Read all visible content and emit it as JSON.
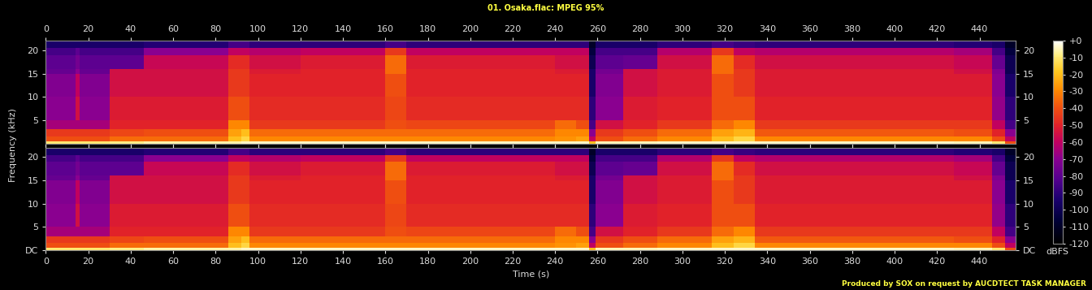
{
  "figure": {
    "title": "01. Osaka.flac: MPEG 95%",
    "x_label": "Time (s)",
    "y_label": "Frequency (kHz)",
    "footer": "Produced by SOX on request by AUCDTECT TASK MANAGER",
    "colorbar": {
      "label": "dBFS",
      "range": [
        -120,
        0
      ],
      "ticks": [
        {
          "value": 0,
          "label": "+0"
        },
        -10,
        -20,
        -30,
        -40,
        -50,
        -60,
        -70,
        -80,
        -90,
        -100,
        -110,
        -120
      ]
    }
  },
  "chart_data": [
    {
      "type": "heatmap",
      "x_edges": [
        0,
        14,
        16,
        30,
        46,
        86,
        92,
        96,
        120,
        160,
        170,
        240,
        250,
        256,
        259,
        272,
        288,
        314,
        324,
        334,
        428,
        446,
        452,
        457
      ],
      "y_edges": [
        0,
        0.4,
        1.5,
        3,
        5,
        10,
        15,
        16,
        19,
        20.5,
        22.05
      ],
      "cells": [
        [
          -10,
          -10,
          -10,
          -8,
          -6,
          -6,
          -4,
          -4,
          -4,
          -4,
          -4,
          -4,
          -4,
          -20,
          -5,
          -5,
          -4,
          -4,
          -4,
          -4,
          -5,
          -10,
          -40
        ],
        [
          -40,
          -40,
          -40,
          -35,
          -35,
          -20,
          -15,
          -30,
          -30,
          -30,
          -30,
          -28,
          -25,
          -60,
          -40,
          -35,
          -30,
          -20,
          -15,
          -30,
          -30,
          -40,
          -60
        ],
        [
          -45,
          -45,
          -45,
          -42,
          -40,
          -25,
          -20,
          -35,
          -35,
          -35,
          -35,
          -30,
          -30,
          -70,
          -45,
          -40,
          -35,
          -25,
          -22,
          -38,
          -40,
          -50,
          -70
        ],
        [
          -65,
          -65,
          -65,
          -50,
          -50,
          -30,
          -30,
          -45,
          -45,
          -40,
          -42,
          -35,
          -40,
          -85,
          -55,
          -50,
          -45,
          -35,
          -30,
          -45,
          -45,
          -60,
          -85
        ],
        [
          -70,
          -55,
          -70,
          -52,
          -52,
          -40,
          -40,
          -48,
          -48,
          -42,
          -48,
          -48,
          -48,
          -90,
          -70,
          -52,
          -50,
          -40,
          -40,
          -50,
          -50,
          -68,
          -90
        ],
        [
          -72,
          -60,
          -72,
          -55,
          -55,
          -45,
          -45,
          -50,
          -50,
          -40,
          -50,
          -50,
          -50,
          -95,
          -72,
          -55,
          -52,
          -40,
          -45,
          -52,
          -52,
          -70,
          -95
        ],
        [
          -78,
          -70,
          -78,
          -55,
          -55,
          -45,
          -45,
          -52,
          -50,
          -35,
          -50,
          -52,
          -52,
          -95,
          -75,
          -55,
          -52,
          -35,
          -45,
          -52,
          -55,
          -72,
          -100
        ],
        [
          -80,
          -75,
          -80,
          -80,
          -58,
          -48,
          -48,
          -55,
          -52,
          -35,
          -52,
          -55,
          -55,
          -100,
          -80,
          -78,
          -55,
          -35,
          -48,
          -55,
          -58,
          -78,
          -100
        ],
        [
          -85,
          -80,
          -85,
          -85,
          -70,
          -60,
          -60,
          -62,
          -60,
          -45,
          -60,
          -60,
          -60,
          -105,
          -85,
          -85,
          -62,
          -45,
          -60,
          -62,
          -65,
          -85,
          -105
        ],
        [
          -95,
          -95,
          -95,
          -95,
          -92,
          -85,
          -85,
          -90,
          -90,
          -85,
          -90,
          -90,
          -90,
          -110,
          -95,
          -95,
          -90,
          -85,
          -88,
          -90,
          -92,
          -95,
          -110
        ]
      ],
      "xlim": [
        0,
        457
      ],
      "xticks": [
        0,
        20,
        40,
        60,
        80,
        100,
        120,
        140,
        160,
        180,
        200,
        220,
        240,
        260,
        280,
        300,
        320,
        340,
        360,
        380,
        400,
        420,
        440
      ],
      "ylim": [
        0,
        22.05
      ],
      "yticks": [
        5,
        10,
        15,
        20
      ]
    },
    {
      "type": "heatmap",
      "x_edges": [
        0,
        14,
        16,
        30,
        46,
        86,
        92,
        96,
        120,
        160,
        170,
        240,
        250,
        256,
        259,
        272,
        288,
        314,
        324,
        334,
        428,
        446,
        452,
        457
      ],
      "y_edges": [
        0,
        0.4,
        1.5,
        3,
        5,
        10,
        15,
        16,
        19,
        20.5,
        22.05
      ],
      "cells": [
        [
          -10,
          -10,
          -10,
          -8,
          -6,
          -6,
          -4,
          -4,
          -4,
          -4,
          -4,
          -4,
          -4,
          -20,
          -5,
          -5,
          -4,
          -4,
          -4,
          -4,
          -5,
          -10,
          -40
        ],
        [
          -40,
          -40,
          -40,
          -35,
          -35,
          -20,
          -15,
          -30,
          -30,
          -30,
          -30,
          -28,
          -25,
          -60,
          -40,
          -35,
          -30,
          -20,
          -15,
          -30,
          -30,
          -40,
          -60
        ],
        [
          -45,
          -45,
          -45,
          -42,
          -40,
          -25,
          -20,
          -35,
          -35,
          -35,
          -35,
          -30,
          -30,
          -70,
          -45,
          -40,
          -35,
          -25,
          -22,
          -38,
          -40,
          -50,
          -70
        ],
        [
          -65,
          -65,
          -65,
          -50,
          -50,
          -30,
          -30,
          -45,
          -45,
          -40,
          -42,
          -35,
          -40,
          -85,
          -55,
          -50,
          -45,
          -35,
          -30,
          -45,
          -45,
          -60,
          -85
        ],
        [
          -70,
          -55,
          -70,
          -52,
          -52,
          -40,
          -40,
          -48,
          -48,
          -42,
          -48,
          -48,
          -48,
          -90,
          -70,
          -52,
          -50,
          -40,
          -40,
          -50,
          -50,
          -68,
          -90
        ],
        [
          -72,
          -60,
          -72,
          -55,
          -55,
          -45,
          -45,
          -50,
          -50,
          -40,
          -50,
          -50,
          -50,
          -95,
          -72,
          -55,
          -52,
          -40,
          -45,
          -52,
          -52,
          -70,
          -95
        ],
        [
          -78,
          -70,
          -78,
          -55,
          -55,
          -45,
          -45,
          -52,
          -50,
          -35,
          -50,
          -52,
          -52,
          -95,
          -75,
          -55,
          -52,
          -35,
          -45,
          -52,
          -55,
          -72,
          -100
        ],
        [
          -80,
          -75,
          -80,
          -80,
          -58,
          -48,
          -48,
          -55,
          -52,
          -35,
          -52,
          -55,
          -55,
          -100,
          -80,
          -78,
          -55,
          -35,
          -48,
          -55,
          -58,
          -78,
          -100
        ],
        [
          -85,
          -80,
          -85,
          -85,
          -70,
          -60,
          -60,
          -62,
          -60,
          -45,
          -60,
          -60,
          -60,
          -105,
          -85,
          -85,
          -62,
          -45,
          -60,
          -62,
          -65,
          -85,
          -105
        ],
        [
          -95,
          -95,
          -95,
          -95,
          -92,
          -85,
          -85,
          -90,
          -90,
          -85,
          -90,
          -90,
          -90,
          -110,
          -95,
          -95,
          -90,
          -85,
          -88,
          -90,
          -92,
          -95,
          -110
        ]
      ],
      "xlim": [
        0,
        457
      ],
      "xticks": [
        0,
        20,
        40,
        60,
        80,
        100,
        120,
        140,
        160,
        180,
        200,
        220,
        240,
        260,
        280,
        300,
        320,
        340,
        360,
        380,
        400,
        420,
        440
      ],
      "ylim": [
        0,
        22.05
      ],
      "yticks": [
        {
          "value": 0,
          "label": "DC"
        },
        5,
        10,
        15,
        20
      ]
    }
  ]
}
